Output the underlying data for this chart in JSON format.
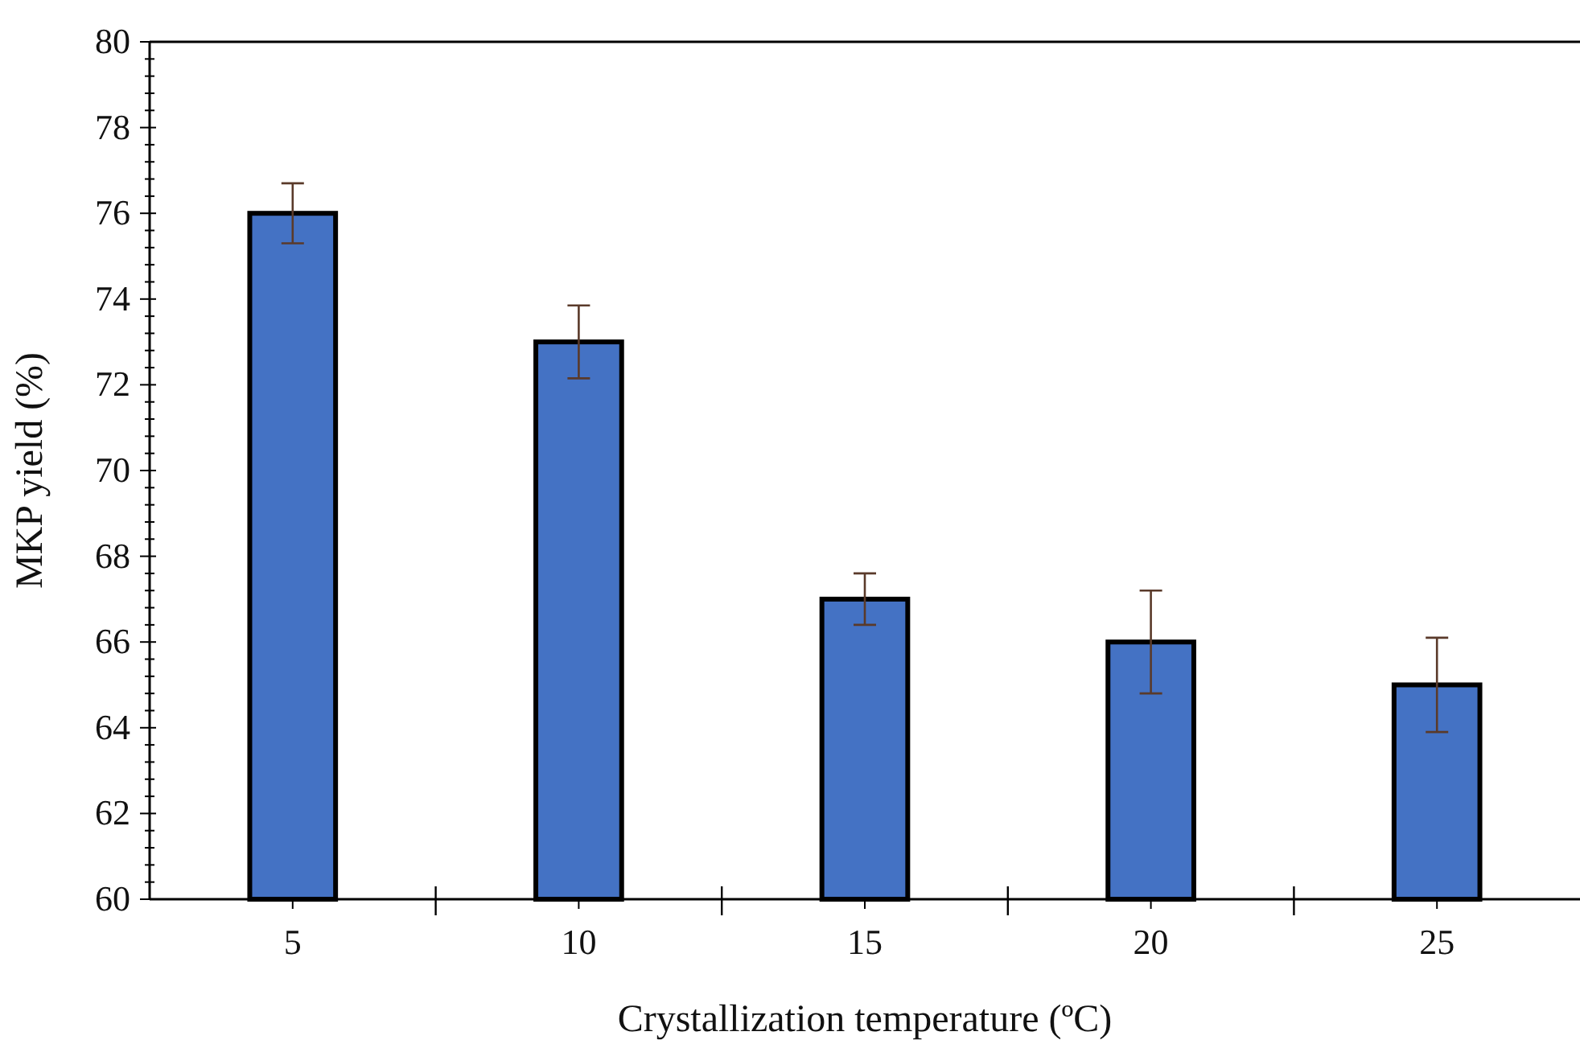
{
  "chart_data": {
    "type": "bar",
    "xlabel": "Crystallization temperature (ºC)",
    "ylabel": "MKP yield (%)",
    "categories": [
      "5",
      "10",
      "15",
      "20",
      "25"
    ],
    "values": [
      76,
      73,
      67,
      66,
      65
    ],
    "errors": [
      0.7,
      0.85,
      0.6,
      1.2,
      1.1
    ],
    "color": "#4472c4",
    "ylim": [
      60,
      80
    ],
    "yticks": [
      60,
      {
        "value": 60.4,
        "label": null
      },
      {
        "value": 60.8,
        "label": null
      },
      {
        "value": 61.2,
        "label": null
      },
      {
        "value": 61.6,
        "label": null
      },
      62,
      {
        "value": 62.4,
        "label": null
      },
      {
        "value": 62.8,
        "label": null
      },
      {
        "value": 63.2,
        "label": null
      },
      {
        "value": 63.6,
        "label": null
      },
      64,
      {
        "value": 64.4,
        "label": null
      },
      {
        "value": 64.8,
        "label": null
      },
      {
        "value": 65.2,
        "label": null
      },
      {
        "value": 65.6,
        "label": null
      },
      66,
      {
        "value": 66.4,
        "label": null
      },
      {
        "value": 66.8,
        "label": null
      },
      {
        "value": 67.2,
        "label": null
      },
      {
        "value": 67.6,
        "label": null
      },
      68,
      {
        "value": 68.4,
        "label": null
      },
      {
        "value": 68.8,
        "label": null
      },
      {
        "value": 69.2,
        "label": null
      },
      {
        "value": 69.6,
        "label": null
      },
      70,
      {
        "value": 70.4,
        "label": null
      },
      {
        "value": 70.8,
        "label": null
      },
      {
        "value": 71.2,
        "label": null
      },
      {
        "value": 71.6,
        "label": null
      },
      72,
      {
        "value": 72.4,
        "label": null
      },
      {
        "value": 72.8,
        "label": null
      },
      {
        "value": 73.2,
        "label": null
      },
      {
        "value": 73.6,
        "label": null
      },
      74,
      {
        "value": 74.4,
        "label": null
      },
      {
        "value": 74.8,
        "label": null
      },
      {
        "value": 75.2,
        "label": null
      },
      {
        "value": 75.6,
        "label": null
      },
      76,
      {
        "value": 76.4,
        "label": null
      },
      {
        "value": 76.8,
        "label": null
      },
      {
        "value": 77.2,
        "label": null
      },
      {
        "value": 77.6,
        "label": null
      },
      78,
      {
        "value": 78.4,
        "label": null
      },
      {
        "value": 78.8,
        "label": null
      },
      {
        "value": 79.2,
        "label": null
      },
      {
        "value": 79.6,
        "label": null
      },
      80
    ],
    "grid": false
  }
}
